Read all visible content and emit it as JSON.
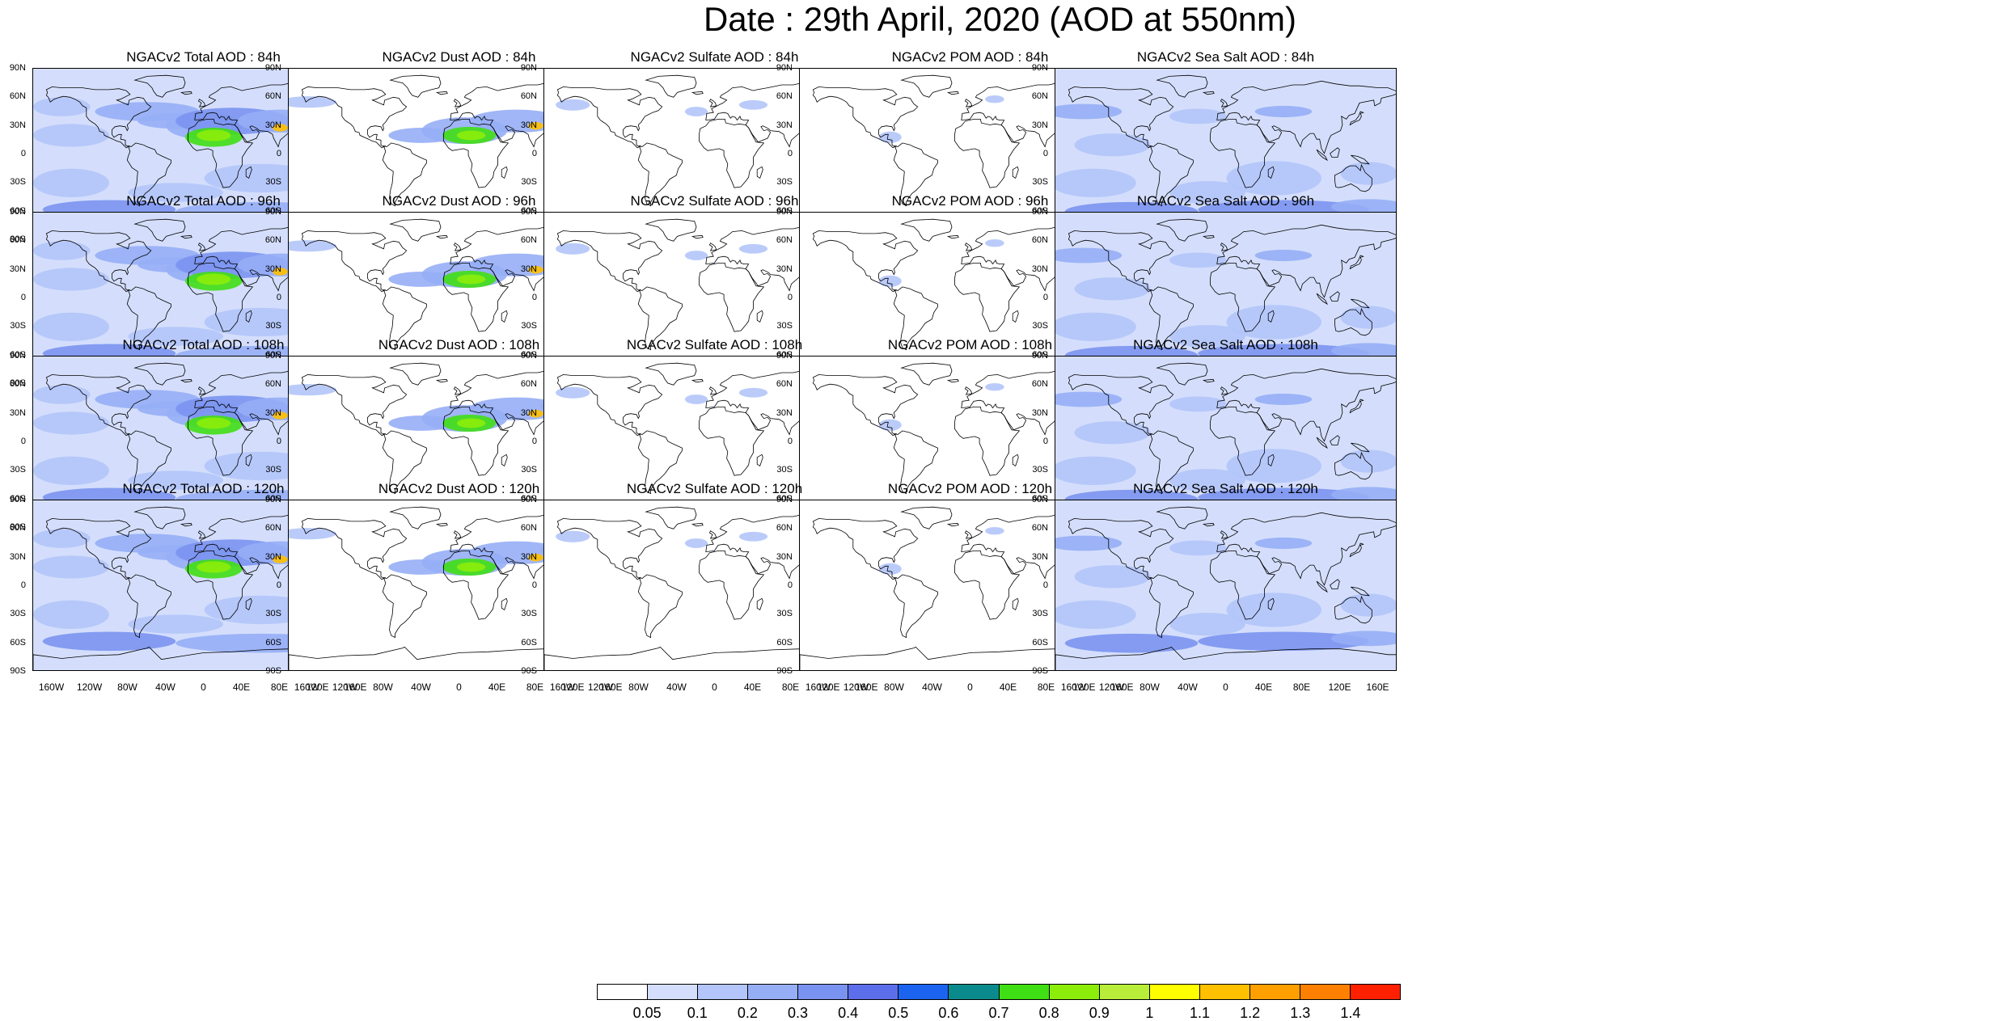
{
  "title": "Date : 29th April, 2020 (AOD at 550nm)",
  "axes": {
    "lat_labels": [
      "90N",
      "60N",
      "30N",
      "0",
      "30S",
      "60S",
      "90S"
    ],
    "lon_labels": [
      "160W",
      "120W",
      "80W",
      "40W",
      "0",
      "40E",
      "80E",
      "120E",
      "160E"
    ]
  },
  "rows": [
    {
      "forecast_hour": "84h",
      "panels": [
        {
          "title": "NGACv2 Total AOD : 84h",
          "species": "total"
        },
        {
          "title": "NGACv2 Dust AOD : 84h",
          "species": "dust"
        },
        {
          "title": "NGACv2 Sulfate AOD : 84h",
          "species": "sulfate"
        },
        {
          "title": "NGACv2 POM AOD : 84h",
          "species": "pom"
        },
        {
          "title": "NGACv2 Sea Salt AOD : 84h",
          "species": "seasalt"
        }
      ]
    },
    {
      "forecast_hour": "96h",
      "panels": [
        {
          "title": "NGACv2 Total AOD : 96h",
          "species": "total"
        },
        {
          "title": "NGACv2 Dust AOD : 96h",
          "species": "dust"
        },
        {
          "title": "NGACv2 Sulfate AOD : 96h",
          "species": "sulfate"
        },
        {
          "title": "NGACv2 POM AOD : 96h",
          "species": "pom"
        },
        {
          "title": "NGACv2 Sea Salt AOD : 96h",
          "species": "seasalt"
        }
      ]
    },
    {
      "forecast_hour": "108h",
      "panels": [
        {
          "title": "NGACv2 Total AOD : 108h",
          "species": "total"
        },
        {
          "title": "NGACv2 Dust AOD : 108h",
          "species": "dust"
        },
        {
          "title": "NGACv2 Sulfate AOD : 108h",
          "species": "sulfate"
        },
        {
          "title": "NGACv2 POM AOD : 108h",
          "species": "pom"
        },
        {
          "title": "NGACv2 Sea Salt AOD : 108h",
          "species": "seasalt"
        }
      ]
    },
    {
      "forecast_hour": "120h",
      "panels": [
        {
          "title": "NGACv2 Total AOD : 120h",
          "species": "total"
        },
        {
          "title": "NGACv2 Dust AOD : 120h",
          "species": "dust"
        },
        {
          "title": "NGACv2 Sulfate AOD : 120h",
          "species": "sulfate"
        },
        {
          "title": "NGACv2 POM AOD : 120h",
          "species": "pom"
        },
        {
          "title": "NGACv2 Sea Salt  AOD : 120h",
          "species": "seasalt"
        }
      ]
    }
  ],
  "colorbar": {
    "labels": [
      "0.05",
      "0.1",
      "0.2",
      "0.3",
      "0.4",
      "0.5",
      "0.6",
      "0.7",
      "0.8",
      "0.9",
      "1",
      "1.1",
      "1.2",
      "1.3",
      "1.4"
    ],
    "colors": [
      "#ffffff",
      "#d4defc",
      "#b3c5fa",
      "#96aef6",
      "#7b93f0",
      "#5d6eea",
      "#1c64f0",
      "#0a8a8c",
      "#40de14",
      "#8ced0a",
      "#b8ee3a",
      "#ffff00",
      "#ffc000",
      "#ffa000",
      "#ff8000",
      "#ff2000"
    ]
  }
}
